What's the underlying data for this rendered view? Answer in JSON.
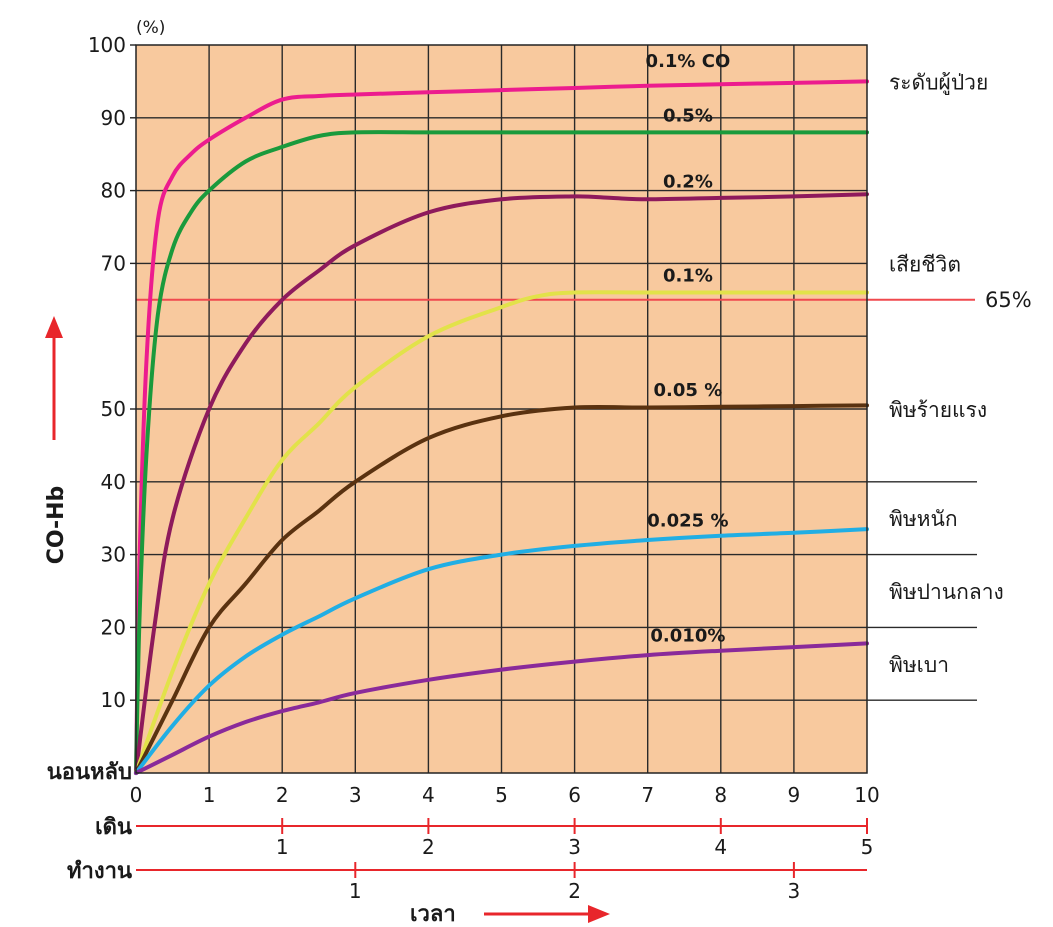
{
  "chart_data": {
    "type": "line",
    "unit": "(%)",
    "ylabel": "CO-Hb",
    "xlabel": "เวลา",
    "xlim": [
      0,
      10
    ],
    "ylim": [
      0,
      100
    ],
    "x_ticks": [
      "0",
      "1",
      "2",
      "3",
      "4",
      "5",
      "6",
      "7",
      "8",
      "9",
      "10"
    ],
    "y_ticks": [
      {
        "v": 10,
        "t": "10"
      },
      {
        "v": 20,
        "t": "20"
      },
      {
        "v": 30,
        "t": "30"
      },
      {
        "v": 40,
        "t": "40"
      },
      {
        "v": 50,
        "t": "50"
      },
      {
        "v": 70,
        "t": "70"
      },
      {
        "v": 80,
        "t": "80"
      },
      {
        "v": 90,
        "t": "90"
      },
      {
        "v": 100,
        "t": "100"
      }
    ],
    "y_zero_label": "นอนหลับ",
    "grid": true,
    "secondary_axes": [
      {
        "label": "เดิน",
        "scale": 2,
        "ticks": [
          {
            "v": 1,
            "t": "1"
          },
          {
            "v": 2,
            "t": "2"
          },
          {
            "v": 3,
            "t": "3"
          },
          {
            "v": 4,
            "t": "4"
          },
          {
            "v": 5,
            "t": "5"
          }
        ]
      },
      {
        "label": "ทำงาน",
        "scale": 3,
        "ticks": [
          {
            "v": 1,
            "t": "1"
          },
          {
            "v": 2,
            "t": "2"
          },
          {
            "v": 3,
            "t": "3"
          }
        ]
      }
    ],
    "threshold": {
      "value": 65,
      "label": "65%"
    },
    "zones": [
      {
        "label": "ระดับผู้ป่วย",
        "y": 95
      },
      {
        "label": "เสียชีวิต",
        "y": 70
      },
      {
        "label": "พิษร้ายแรง",
        "y": 50
      },
      {
        "label": "พิษหนัก",
        "y": 35
      },
      {
        "label": "พิษปานกลาง",
        "y": 25
      },
      {
        "label": "พิษเบา",
        "y": 15
      }
    ],
    "zone_lines": [
      40,
      30,
      20,
      10
    ],
    "series": [
      {
        "name": "0.1% CO",
        "color": "#ec1c8e",
        "x": [
          0,
          0.05,
          0.15,
          0.3,
          0.5,
          0.75,
          1,
          1.5,
          2,
          2.5,
          3,
          4,
          5,
          6,
          7,
          8,
          9,
          10
        ],
        "y": [
          0,
          30,
          58,
          76,
          82,
          85,
          87,
          90,
          92.5,
          93,
          93.2,
          93.5,
          93.8,
          94.1,
          94.4,
          94.6,
          94.8,
          95
        ]
      },
      {
        "name": "0.5%",
        "color": "#1a9a3c",
        "x": [
          0,
          0.05,
          0.15,
          0.3,
          0.5,
          0.75,
          1,
          1.5,
          2,
          2.5,
          3,
          4,
          5,
          6,
          7,
          8,
          9,
          10
        ],
        "y": [
          0,
          22,
          45,
          63,
          72,
          77,
          80,
          84,
          86,
          87.5,
          88,
          88,
          88,
          88,
          88,
          88,
          88,
          88
        ]
      },
      {
        "name": "0.2%",
        "color": "#8e1a5c",
        "x": [
          0,
          0.25,
          0.5,
          1,
          1.5,
          2,
          2.5,
          3,
          4,
          5,
          6,
          6.5,
          7,
          8,
          9,
          10
        ],
        "y": [
          0,
          20,
          35,
          50,
          59,
          65,
          69,
          72.5,
          77,
          78.8,
          79.2,
          79,
          78.8,
          79,
          79.2,
          79.5
        ]
      },
      {
        "name": "0.1%",
        "color": "#e2e24a",
        "x": [
          0,
          0.5,
          1,
          1.5,
          2,
          2.5,
          3,
          4,
          5,
          5.5,
          6,
          7,
          8,
          9,
          10
        ],
        "y": [
          0,
          14,
          26,
          35,
          43,
          48,
          53,
          60,
          64,
          65.5,
          66,
          66,
          66,
          66,
          66
        ]
      },
      {
        "name": "0.05 %",
        "color": "#5a3210",
        "x": [
          0,
          0.5,
          1,
          1.5,
          2,
          2.5,
          3,
          4,
          5,
          6,
          7,
          8,
          9,
          10
        ],
        "y": [
          0,
          10,
          20,
          26,
          32,
          36,
          40,
          46,
          49,
          50.2,
          50.2,
          50.3,
          50.4,
          50.5
        ]
      },
      {
        "name": "0.025 %",
        "color": "#21aee4",
        "x": [
          0,
          0.5,
          1,
          1.5,
          2,
          2.5,
          3,
          4,
          5,
          6,
          7,
          8,
          9,
          10
        ],
        "y": [
          0,
          6.5,
          12,
          16,
          19,
          21.5,
          24,
          28,
          30,
          31.2,
          32,
          32.6,
          33,
          33.5
        ]
      },
      {
        "name": "0.010%",
        "color": "#8a2a9a",
        "x": [
          0,
          0.5,
          1,
          1.5,
          2,
          2.5,
          3,
          4,
          5,
          6,
          7,
          8,
          9,
          10
        ],
        "y": [
          0,
          2.5,
          5,
          7,
          8.5,
          9.7,
          11,
          12.8,
          14.2,
          15.3,
          16.2,
          16.8,
          17.3,
          17.8
        ]
      }
    ]
  }
}
